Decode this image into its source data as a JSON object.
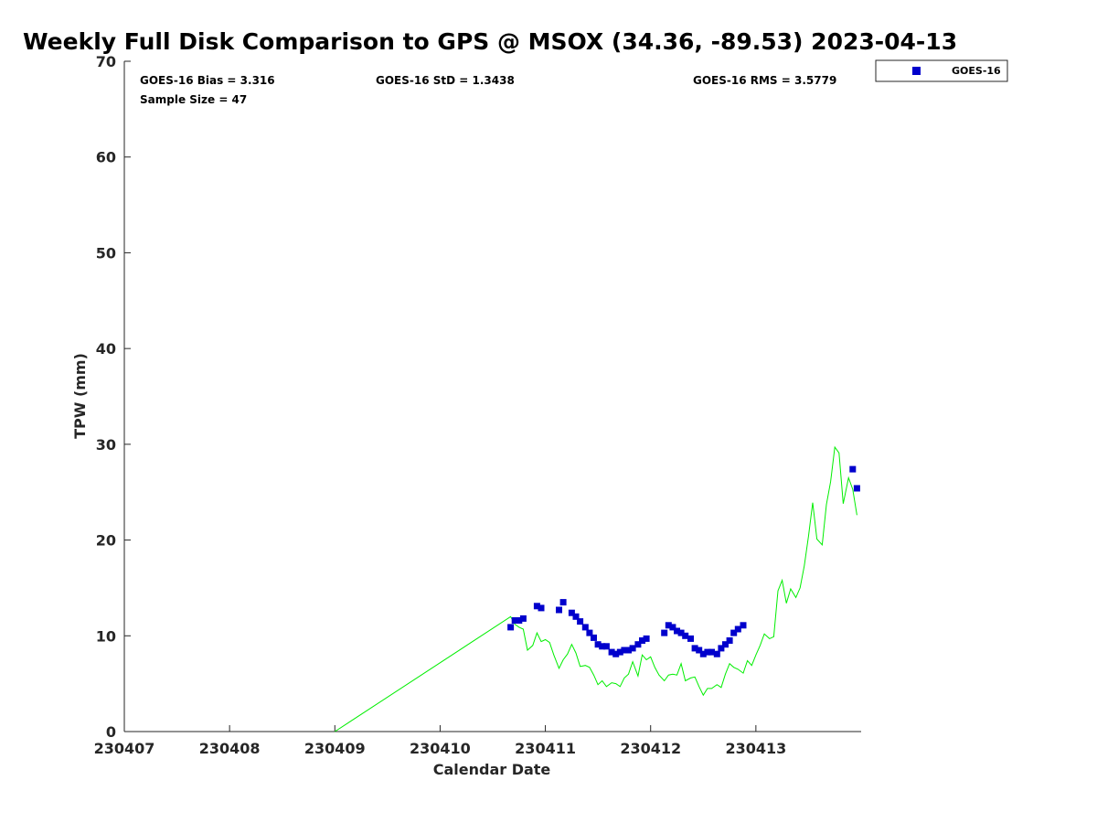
{
  "chart_data": {
    "type": "scatter",
    "title": "Weekly Full Disk Comparison to GPS @ MSOX (34.36, -89.53) 2023-04-13",
    "xlabel": "Calendar Date",
    "ylabel": "TPW (mm)",
    "xlim": [
      "230407",
      "230414"
    ],
    "ylim": [
      0,
      70
    ],
    "x_ticks": [
      "230407",
      "230408",
      "230409",
      "230410",
      "230411",
      "230412",
      "230413"
    ],
    "y_ticks": [
      0,
      10,
      20,
      30,
      40,
      50,
      60,
      70
    ],
    "grid": false,
    "legend": {
      "position": "top-right",
      "entries": [
        "GOES-16"
      ]
    },
    "stats": {
      "bias": "GOES-16 Bias = 3.316",
      "std": "GOES-16 StD = 1.3438",
      "rms": "GOES-16 RMS = 3.5779",
      "sample": "Sample Size = 47"
    },
    "series": [
      {
        "name": "GOES-16",
        "kind": "scatter",
        "color": "#0000cc",
        "marker": "square",
        "points": [
          [
            230410.67,
            10.9
          ],
          [
            230410.71,
            11.6
          ],
          [
            230410.75,
            11.6
          ],
          [
            230410.79,
            11.8
          ],
          [
            230410.92,
            13.1
          ],
          [
            230410.96,
            12.9
          ],
          [
            230411.13,
            12.7
          ],
          [
            230411.17,
            13.5
          ],
          [
            230411.25,
            12.4
          ],
          [
            230411.29,
            12.0
          ],
          [
            230411.33,
            11.5
          ],
          [
            230411.38,
            10.9
          ],
          [
            230411.42,
            10.3
          ],
          [
            230411.46,
            9.8
          ],
          [
            230411.5,
            9.1
          ],
          [
            230411.54,
            8.9
          ],
          [
            230411.58,
            8.9
          ],
          [
            230411.63,
            8.3
          ],
          [
            230411.67,
            8.1
          ],
          [
            230411.71,
            8.3
          ],
          [
            230411.75,
            8.5
          ],
          [
            230411.79,
            8.5
          ],
          [
            230411.83,
            8.7
          ],
          [
            230411.88,
            9.1
          ],
          [
            230411.92,
            9.5
          ],
          [
            230411.96,
            9.7
          ],
          [
            230412.13,
            10.3
          ],
          [
            230412.17,
            11.1
          ],
          [
            230412.21,
            10.9
          ],
          [
            230412.25,
            10.5
          ],
          [
            230412.29,
            10.3
          ],
          [
            230412.33,
            10.0
          ],
          [
            230412.38,
            9.7
          ],
          [
            230412.42,
            8.7
          ],
          [
            230412.46,
            8.5
          ],
          [
            230412.5,
            8.1
          ],
          [
            230412.54,
            8.3
          ],
          [
            230412.58,
            8.3
          ],
          [
            230412.63,
            8.1
          ],
          [
            230412.67,
            8.7
          ],
          [
            230412.71,
            9.1
          ],
          [
            230412.75,
            9.5
          ],
          [
            230412.79,
            10.3
          ],
          [
            230412.83,
            10.7
          ],
          [
            230412.88,
            11.1
          ],
          [
            230413.92,
            27.4
          ],
          [
            230413.96,
            25.4
          ]
        ]
      },
      {
        "kind": "line",
        "color": "#00ee00",
        "points": [
          [
            230409.0,
            0.0
          ],
          [
            230410.67,
            12.0
          ],
          [
            230410.71,
            11.2
          ],
          [
            230410.75,
            10.9
          ],
          [
            230410.79,
            10.7
          ],
          [
            230410.83,
            8.5
          ],
          [
            230410.88,
            9.0
          ],
          [
            230410.92,
            10.3
          ],
          [
            230410.96,
            9.4
          ],
          [
            230411.0,
            9.6
          ],
          [
            230411.04,
            9.3
          ],
          [
            230411.08,
            8.0
          ],
          [
            230411.13,
            6.6
          ],
          [
            230411.17,
            7.5
          ],
          [
            230411.21,
            8.1
          ],
          [
            230411.25,
            9.1
          ],
          [
            230411.29,
            8.2
          ],
          [
            230411.33,
            6.8
          ],
          [
            230411.38,
            6.9
          ],
          [
            230411.42,
            6.7
          ],
          [
            230411.46,
            5.9
          ],
          [
            230411.5,
            4.9
          ],
          [
            230411.54,
            5.3
          ],
          [
            230411.58,
            4.7
          ],
          [
            230411.63,
            5.1
          ],
          [
            230411.67,
            5.0
          ],
          [
            230411.71,
            4.7
          ],
          [
            230411.75,
            5.6
          ],
          [
            230411.79,
            6.0
          ],
          [
            230411.83,
            7.3
          ],
          [
            230411.88,
            5.8
          ],
          [
            230411.92,
            8.0
          ],
          [
            230411.96,
            7.5
          ],
          [
            230412.0,
            7.8
          ],
          [
            230412.04,
            6.7
          ],
          [
            230412.08,
            5.9
          ],
          [
            230412.13,
            5.3
          ],
          [
            230412.17,
            5.9
          ],
          [
            230412.21,
            6.0
          ],
          [
            230412.25,
            5.9
          ],
          [
            230412.29,
            7.1
          ],
          [
            230412.33,
            5.3
          ],
          [
            230412.38,
            5.6
          ],
          [
            230412.42,
            5.7
          ],
          [
            230412.46,
            4.7
          ],
          [
            230412.5,
            3.8
          ],
          [
            230412.54,
            4.5
          ],
          [
            230412.58,
            4.5
          ],
          [
            230412.63,
            4.9
          ],
          [
            230412.67,
            4.6
          ],
          [
            230412.71,
            6.0
          ],
          [
            230412.75,
            7.1
          ],
          [
            230412.79,
            6.7
          ],
          [
            230412.83,
            6.5
          ],
          [
            230412.88,
            6.1
          ],
          [
            230412.92,
            7.4
          ],
          [
            230412.96,
            6.9
          ],
          [
            230413.0,
            8.0
          ],
          [
            230413.04,
            9.0
          ],
          [
            230413.08,
            10.2
          ],
          [
            230413.13,
            9.7
          ],
          [
            230413.17,
            9.9
          ],
          [
            230413.21,
            14.7
          ],
          [
            230413.25,
            15.8
          ],
          [
            230413.29,
            13.4
          ],
          [
            230413.33,
            14.9
          ],
          [
            230413.38,
            14.0
          ],
          [
            230413.42,
            15.0
          ],
          [
            230413.46,
            17.3
          ],
          [
            230413.5,
            20.4
          ],
          [
            230413.54,
            23.9
          ],
          [
            230413.58,
            20.1
          ],
          [
            230413.63,
            19.5
          ],
          [
            230413.67,
            23.7
          ],
          [
            230413.71,
            26.1
          ],
          [
            230413.75,
            29.7
          ],
          [
            230413.79,
            29.1
          ],
          [
            230413.83,
            23.8
          ],
          [
            230413.88,
            26.5
          ],
          [
            230413.92,
            25.3
          ],
          [
            230413.96,
            22.6
          ]
        ]
      }
    ]
  }
}
